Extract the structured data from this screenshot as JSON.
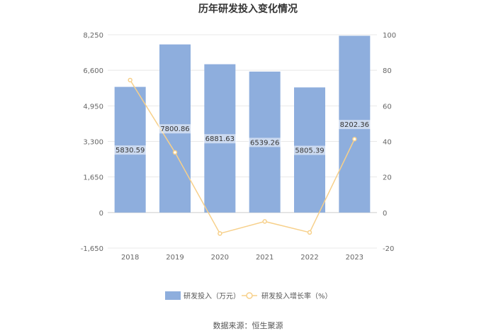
{
  "chart_data": {
    "type": "bar",
    "title": "历年研发投入变化情况",
    "categories": [
      "2018",
      "2019",
      "2020",
      "2021",
      "2022",
      "2023"
    ],
    "series": [
      {
        "name": "研发投入（万元）",
        "type": "bar",
        "axis": "left",
        "values": [
          5830.59,
          7800.86,
          6881.63,
          6539.26,
          5805.39,
          8202.36
        ],
        "labels": [
          "5830.59",
          "7800.86",
          "6881.63",
          "6539.26",
          "5805.39",
          "8202.36"
        ],
        "color": "#8eaedd"
      },
      {
        "name": "研发投入增长率（%）",
        "type": "line",
        "axis": "right",
        "values": [
          74.5,
          33.8,
          -11.8,
          -5.0,
          -11.2,
          41.3
        ],
        "color": "#f7d08a"
      }
    ],
    "y_left": {
      "min": -1650,
      "max": 8250,
      "ticks": [
        -1650,
        0,
        1650,
        3300,
        4950,
        6600,
        8250
      ],
      "tick_labels": [
        "-1,650",
        "0",
        "1,650",
        "3,300",
        "4,950",
        "6,600",
        "8,250"
      ]
    },
    "y_right": {
      "min": -20,
      "max": 100,
      "ticks": [
        -20,
        0,
        20,
        40,
        60,
        80,
        100
      ],
      "tick_labels": [
        "-20",
        "0",
        "20",
        "40",
        "60",
        "80",
        "100"
      ]
    },
    "grid": true,
    "legend_position": "bottom"
  },
  "source": "数据来源：恒生聚源"
}
